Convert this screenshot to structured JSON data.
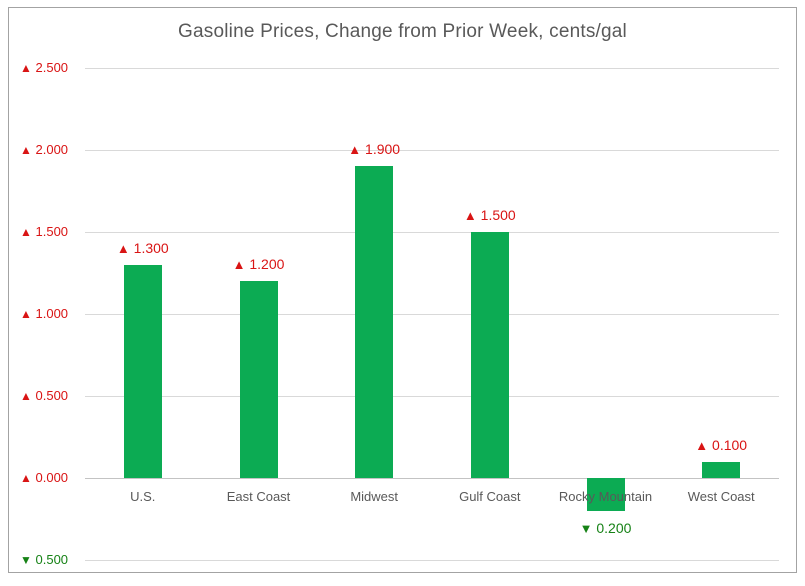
{
  "chart_data": {
    "type": "bar",
    "title": "Gasoline Prices, Change from Prior Week, cents/gal",
    "categories": [
      "U.S.",
      "East Coast",
      "Midwest",
      "Gulf Coast",
      "Rocky Mountain",
      "West Coast"
    ],
    "values": [
      1.3,
      1.2,
      1.9,
      1.5,
      -0.2,
      0.1
    ],
    "bar_labels": [
      "▲ 1.300",
      "▲ 1.200",
      "▲ 1.900",
      "▲ 1.500",
      "▼ 0.200",
      "▲ 0.100"
    ],
    "bar_label_directions": [
      "up",
      "up",
      "up",
      "up",
      "down",
      "up"
    ],
    "y_ticks": [
      {
        "value": 2.5,
        "label": "▲ 2.500",
        "direction": "up"
      },
      {
        "value": 2.0,
        "label": "▲ 2.000",
        "direction": "up"
      },
      {
        "value": 1.5,
        "label": "▲ 1.500",
        "direction": "up"
      },
      {
        "value": 1.0,
        "label": "▲ 1.000",
        "direction": "up"
      },
      {
        "value": 0.5,
        "label": "▲ 0.500",
        "direction": "up"
      },
      {
        "value": 0.0,
        "label": "▲ 0.000",
        "direction": "up"
      },
      {
        "value": -0.5,
        "label": "▼ 0.500",
        "direction": "down"
      }
    ],
    "ylim": [
      -0.5,
      2.5
    ],
    "xlabel": "",
    "ylabel": "",
    "grid": true,
    "legend": false,
    "colors": {
      "bar": "#0cab53",
      "increase_label": "#d91414",
      "decrease_label": "#168216",
      "axis_text": "#595959",
      "gridline": "#d9d9d9",
      "zero_line": "#c3c3c3",
      "border": "#a3a3a3"
    }
  }
}
